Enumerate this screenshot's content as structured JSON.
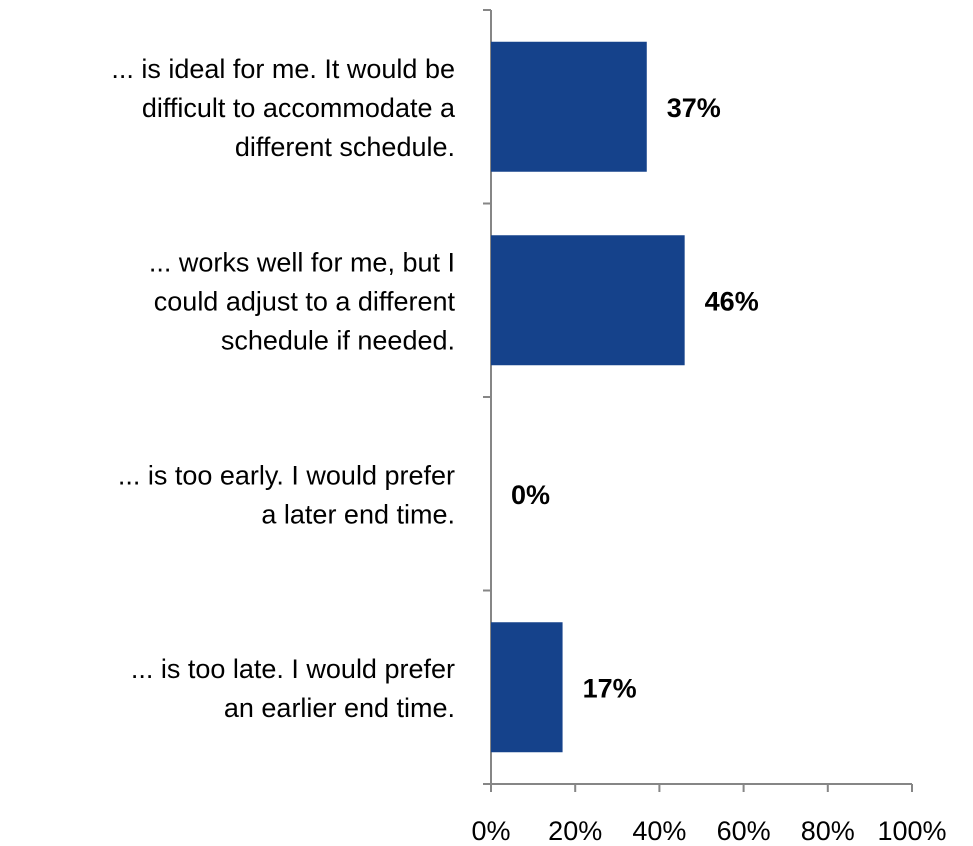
{
  "chart_data": {
    "type": "bar",
    "orientation": "horizontal",
    "categories": [
      "... is ideal for me. It would be difficult to accommodate a different schedule.",
      "... works well for me, but I could adjust to a different schedule if needed.",
      "... is too early. I would prefer a later end time.",
      "... is too late. I would prefer an earlier end time."
    ],
    "category_lines": [
      [
        "... is ideal for me. It would be",
        "difficult to accommodate a",
        "different schedule."
      ],
      [
        "... works well for me, but I",
        "could adjust to a different",
        "schedule if needed."
      ],
      [
        "... is too early. I would prefer",
        "a later end time."
      ],
      [
        "... is too late. I would prefer",
        "an earlier end time."
      ]
    ],
    "values": [
      37,
      46,
      0,
      17
    ],
    "value_labels": [
      "37%",
      "46%",
      "0%",
      "17%"
    ],
    "xlim": [
      0,
      100
    ],
    "xticks": [
      0,
      20,
      40,
      60,
      80,
      100
    ],
    "xtick_labels": [
      "0%",
      "20%",
      "40%",
      "60%",
      "80%",
      "100%"
    ],
    "bar_color": "#15428B",
    "axis_color": "#868686",
    "grid": false,
    "legend": "none"
  }
}
